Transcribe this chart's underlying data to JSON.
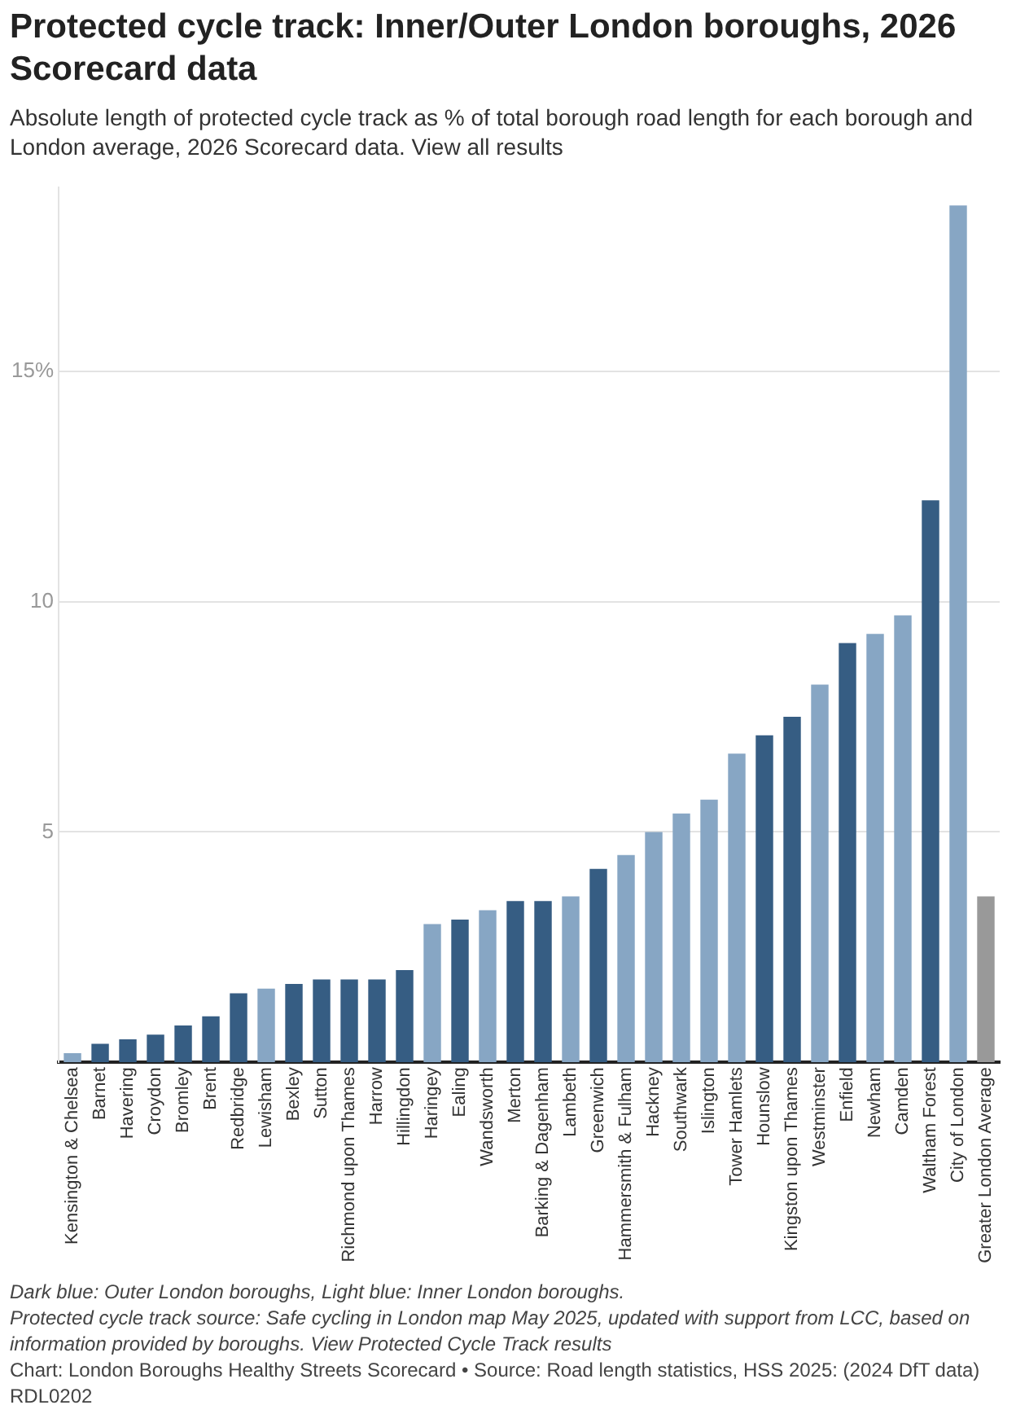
{
  "chart_data": {
    "type": "bar",
    "title": "Protected cycle track: Inner/Outer London boroughs, 2026 Scorecard data",
    "subtitle": "Absolute length of protected cycle track as % of total borough road length for each borough and London average, 2026 Scorecard data. View all results",
    "categories": [
      "Kensington & Chelsea",
      "Barnet",
      "Havering",
      "Croydon",
      "Bromley",
      "Brent",
      "Redbridge",
      "Lewisham",
      "Bexley",
      "Sutton",
      "Richmond upon Thames",
      "Harrow",
      "Hillingdon",
      "Haringey",
      "Ealing",
      "Wandsworth",
      "Merton",
      "Barking & Dagenham",
      "Lambeth",
      "Greenwich",
      "Hammersmith & Fulham",
      "Hackney",
      "Southwark",
      "Islington",
      "Tower Hamlets",
      "Hounslow",
      "Kingston upon Thames",
      "Westminster",
      "Enfield",
      "Newham",
      "Camden",
      "Waltham Forest",
      "City of London",
      "Greater London Average"
    ],
    "values": [
      0.2,
      0.4,
      0.5,
      0.6,
      0.8,
      1.0,
      1.5,
      1.6,
      1.7,
      1.8,
      1.8,
      1.8,
      2.0,
      3.0,
      3.1,
      3.3,
      3.5,
      3.5,
      3.6,
      4.2,
      4.5,
      5.0,
      5.4,
      5.7,
      6.7,
      7.1,
      7.5,
      8.2,
      9.1,
      9.3,
      9.7,
      12.2,
      18.6,
      3.6
    ],
    "colors": [
      "#87a6c4",
      "#365d83",
      "#365d83",
      "#365d83",
      "#365d83",
      "#365d83",
      "#365d83",
      "#87a6c4",
      "#365d83",
      "#365d83",
      "#365d83",
      "#365d83",
      "#365d83",
      "#87a6c4",
      "#365d83",
      "#87a6c4",
      "#365d83",
      "#365d83",
      "#87a6c4",
      "#365d83",
      "#87a6c4",
      "#87a6c4",
      "#87a6c4",
      "#87a6c4",
      "#87a6c4",
      "#365d83",
      "#365d83",
      "#87a6c4",
      "#365d83",
      "#87a6c4",
      "#87a6c4",
      "#365d83",
      "#87a6c4",
      "#999999"
    ],
    "ylim": [
      0,
      19
    ],
    "yticks": [
      5,
      10,
      {
        "value": 15,
        "label": "15%"
      }
    ],
    "grid": "y",
    "legend": false,
    "annotations": [
      "Dark blue: Outer London boroughs, Light blue: Inner London boroughs.",
      "Protected cycle track source: Safe cycling in London map May 2025, updated with support from LCC, based on information provided by boroughs. View Protected Cycle Track results",
      "Chart: London Boroughs Healthy Streets Scorecard • Source: Road length statistics, HSS 2025: (2024 DfT data) RDL0202"
    ]
  }
}
